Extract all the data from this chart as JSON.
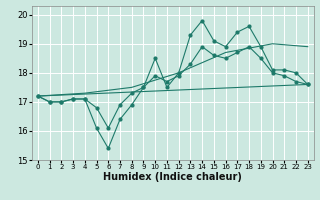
{
  "title": "",
  "xlabel": "Humidex (Indice chaleur)",
  "xlim": [
    -0.5,
    23.5
  ],
  "ylim": [
    15,
    20.3
  ],
  "yticks": [
    15,
    16,
    17,
    18,
    19,
    20
  ],
  "xticks": [
    0,
    1,
    2,
    3,
    4,
    5,
    6,
    7,
    8,
    9,
    10,
    11,
    12,
    13,
    14,
    15,
    16,
    17,
    18,
    19,
    20,
    21,
    22,
    23
  ],
  "bg_color": "#cce8e0",
  "grid_color": "#ffffff",
  "line_color": "#1e7a6a",
  "lines": [
    {
      "x": [
        0,
        1,
        2,
        3,
        4,
        5,
        6,
        7,
        8,
        9,
        10,
        11,
        12,
        13,
        14,
        15,
        16,
        17,
        18,
        19,
        20,
        21,
        22,
        23
      ],
      "y": [
        17.2,
        17.0,
        17.0,
        17.1,
        17.1,
        16.1,
        15.4,
        16.4,
        16.9,
        17.5,
        18.5,
        17.5,
        18.0,
        19.3,
        19.8,
        19.1,
        18.9,
        19.4,
        19.6,
        18.9,
        18.1,
        18.1,
        18.0,
        17.6
      ],
      "marker": "o",
      "ms": 2.0,
      "lw": 0.8
    },
    {
      "x": [
        0,
        1,
        2,
        3,
        4,
        5,
        6,
        7,
        8,
        9,
        10,
        11,
        12,
        13,
        14,
        15,
        16,
        17,
        18,
        19,
        20,
        21,
        22,
        23
      ],
      "y": [
        17.2,
        17.0,
        17.0,
        17.1,
        17.1,
        16.8,
        16.1,
        16.9,
        17.3,
        17.5,
        17.9,
        17.7,
        17.9,
        18.3,
        18.9,
        18.6,
        18.5,
        18.7,
        18.9,
        18.5,
        18.0,
        17.9,
        17.7,
        17.6
      ],
      "marker": "o",
      "ms": 2.0,
      "lw": 0.8
    },
    {
      "x": [
        0,
        4,
        8,
        12,
        16,
        20,
        23
      ],
      "y": [
        17.2,
        17.3,
        17.5,
        18.0,
        18.7,
        19.0,
        18.9
      ],
      "marker": null,
      "ms": 0,
      "lw": 0.8
    },
    {
      "x": [
        0,
        23
      ],
      "y": [
        17.2,
        17.6
      ],
      "marker": null,
      "ms": 0,
      "lw": 0.8
    }
  ]
}
